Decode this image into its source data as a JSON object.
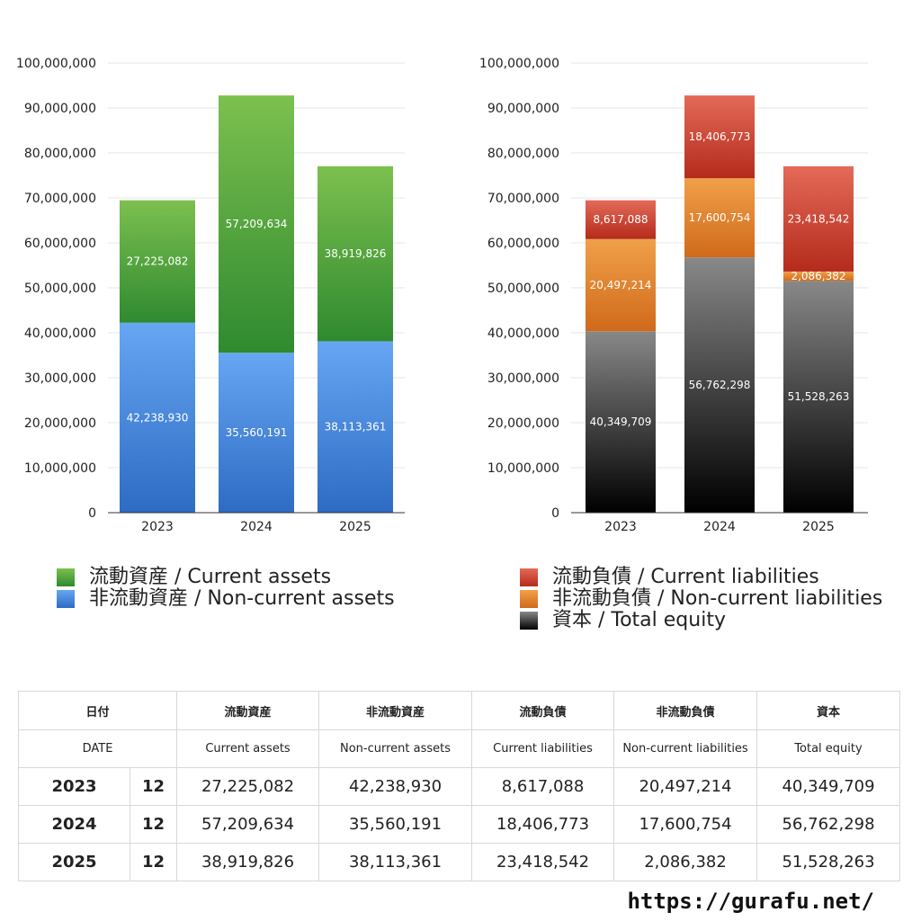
{
  "chart_data": [
    {
      "type": "bar",
      "stacked": true,
      "categories": [
        "2023",
        "2024",
        "2025"
      ],
      "ylim": [
        0,
        100000000
      ],
      "yticks": [
        "0",
        "10,000,000",
        "20,000,000",
        "30,000,000",
        "40,000,000",
        "50,000,000",
        "60,000,000",
        "70,000,000",
        "80,000,000",
        "90,000,000",
        "100,000,000"
      ],
      "series": [
        {
          "name": "非流動資産 / Non-current assets",
          "values": [
            42238930,
            35560191,
            38113361
          ],
          "labels": [
            "42,238,930",
            "35,560,191",
            "38,113,361"
          ],
          "color_top": "#66a6f2",
          "color_bottom": "#2e6bc4"
        },
        {
          "name": "流動資産 / Current assets",
          "values": [
            27225082,
            57209634,
            38919826
          ],
          "labels": [
            "27,225,082",
            "57,209,634",
            "38,919,826"
          ],
          "color_top": "#7cc04f",
          "color_bottom": "#2f8a2f"
        }
      ]
    },
    {
      "type": "bar",
      "stacked": true,
      "categories": [
        "2023",
        "2024",
        "2025"
      ],
      "ylim": [
        0,
        100000000
      ],
      "yticks": [
        "0",
        "10,000,000",
        "20,000,000",
        "30,000,000",
        "40,000,000",
        "50,000,000",
        "60,000,000",
        "70,000,000",
        "80,000,000",
        "90,000,000",
        "100,000,000"
      ],
      "series": [
        {
          "name": "資本 / Total equity",
          "values": [
            40349709,
            56762298,
            51528263
          ],
          "labels": [
            "40,349,709",
            "56,762,298",
            "51,528,263"
          ],
          "color_top": "#888888",
          "color_bottom": "#000000"
        },
        {
          "name": "非流動負債 / Non-current liabilities",
          "values": [
            20497214,
            17600754,
            2086382
          ],
          "labels": [
            "20,497,214",
            "17,600,754",
            "2,086,382"
          ],
          "color_top": "#f0a04a",
          "color_bottom": "#d06a1a"
        },
        {
          "name": "流動負債 / Current liabilities",
          "values": [
            8617088,
            18406773,
            23418542
          ],
          "labels": [
            "8,617,088",
            "18,406,773",
            "23,418,542"
          ],
          "color_top": "#e46a57",
          "color_bottom": "#b42b1c"
        }
      ]
    }
  ],
  "legend_left": [
    "流動資産 / Current assets",
    "非流動資産 / Non-current assets"
  ],
  "legend_right": [
    "流動負債 / Current liabilities",
    "非流動負債 / Non-current liabilities",
    "資本 / Total equity"
  ],
  "table": {
    "headers_jp": [
      "日付",
      "流動資産",
      "非流動資産",
      "流動負債",
      "非流動負債",
      "資本"
    ],
    "headers_en": [
      "DATE",
      "Current assets",
      "Non-current assets",
      "Current liabilities",
      "Non-current liabilities",
      "Total equity"
    ],
    "rows": [
      {
        "year": "2023",
        "month": "12",
        "values": [
          "27,225,082",
          "42,238,930",
          "8,617,088",
          "20,497,214",
          "40,349,709"
        ]
      },
      {
        "year": "2024",
        "month": "12",
        "values": [
          "57,209,634",
          "35,560,191",
          "18,406,773",
          "17,600,754",
          "56,762,298"
        ]
      },
      {
        "year": "2025",
        "month": "12",
        "values": [
          "38,919,826",
          "38,113,361",
          "23,418,542",
          "2,086,382",
          "51,528,263"
        ]
      }
    ]
  },
  "site_url": "https://gurafu.net/"
}
